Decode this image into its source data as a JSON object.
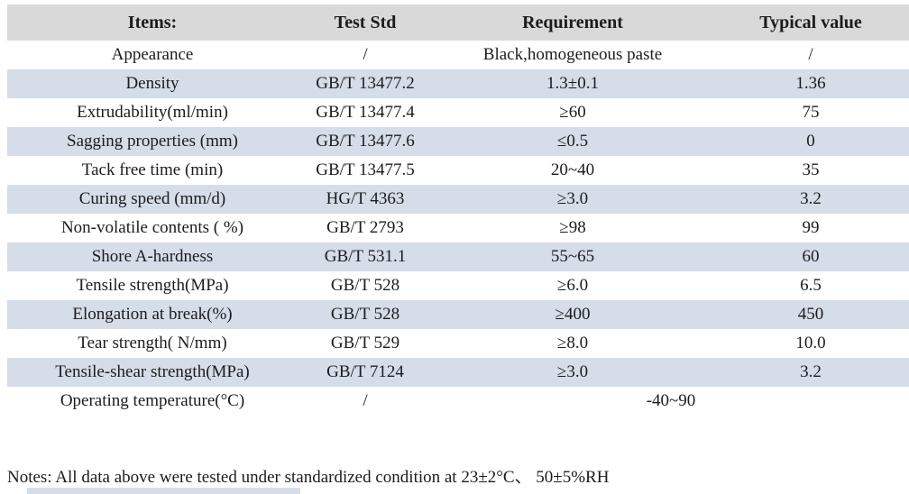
{
  "table": {
    "columns": [
      "Items:",
      "Test Std",
      "Requirement",
      "Typical value"
    ],
    "rows": [
      {
        "item": "Appearance",
        "std": "/",
        "req": "Black,homogeneous paste",
        "typ": "/"
      },
      {
        "item": "Density",
        "std": "GB/T 13477.2",
        "req": "1.3±0.1",
        "typ": "1.36"
      },
      {
        "item": "Extrudability(ml/min)",
        "std": "GB/T 13477.4",
        "req": "≥60",
        "typ": "75"
      },
      {
        "item": "Sagging properties (mm)",
        "std": "GB/T 13477.6",
        "req": "≤0.5",
        "typ": "0"
      },
      {
        "item": "Tack free time (min)",
        "std": "GB/T 13477.5",
        "req": "20~40",
        "typ": "35"
      },
      {
        "item": "Curing speed (mm/d)",
        "std": "HG/T 4363",
        "req": "≥3.0",
        "typ": "3.2"
      },
      {
        "item": "Non-volatile contents ( %)",
        "std": "GB/T 2793",
        "req": "≥98",
        "typ": "99"
      },
      {
        "item": "Shore A-hardness",
        "std": "GB/T 531.1",
        "req": "55~65",
        "typ": "60"
      },
      {
        "item": "Tensile strength(MPa)",
        "std": "GB/T 528",
        "req": "≥6.0",
        "typ": "6.5"
      },
      {
        "item": "Elongation at break(%)",
        "std": "GB/T 528",
        "req": "≥400",
        "typ": "450"
      },
      {
        "item": "Tear strength( N/mm)",
        "std": "GB/T 529",
        "req": "≥8.0",
        "typ": "10.0"
      },
      {
        "item": "Tensile-shear strength(MPa)",
        "std": "GB/T 7124",
        "req": "≥3.0",
        "typ": "3.2"
      },
      {
        "item": "Operating temperature(°C)",
        "std": "/",
        "req_span": "-40~90"
      }
    ]
  },
  "notes": "Notes: All data above were tested under standardized condition at 23±2°C、 50±5%RH",
  "colors": {
    "header_bg": "#d9d9d9",
    "stripe_bg": "#d5dde8",
    "text": "#1c1c1c"
  }
}
